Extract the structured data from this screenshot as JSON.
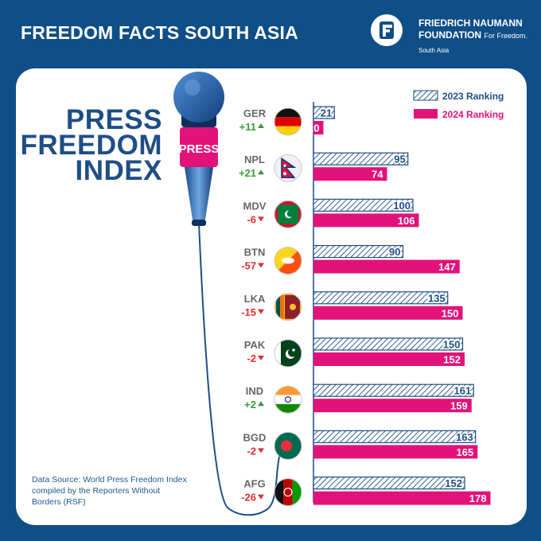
{
  "header": {
    "title": "FREEDOM FACTS SOUTH ASIA"
  },
  "logo": {
    "line1": "FRIEDRICH NAUMANN",
    "line2": "FOUNDATION",
    "tagline": "For Freedom.",
    "sub": "South Asia",
    "icon": "fnf-logo-icon"
  },
  "main_title": [
    "PRESS",
    "FREEDOM",
    "INDEX"
  ],
  "mic_label": "PRESS",
  "source": "Data Source: World Press Freedom Index compiled by the Reporters Without Borders (RSF)",
  "colors": {
    "navy": "#0f4e86",
    "title_blue": "#1f4e86",
    "magenta": "#e2127a",
    "up_green": "#3a9d3a",
    "down_red": "#e03030"
  },
  "chart_data": {
    "type": "bar",
    "categories": [
      "GER",
      "NPL",
      "MDV",
      "BTN",
      "LKA",
      "PAK",
      "IND",
      "BGD",
      "AFG"
    ],
    "changes": [
      "+11",
      "+21",
      "-6",
      "-57",
      "-15",
      "-2",
      "+2",
      "-2",
      "-26"
    ],
    "flags": [
      "germany-flag-icon",
      "nepal-flag-icon",
      "maldives-flag-icon",
      "bhutan-flag-icon",
      "sri-lanka-flag-icon",
      "pakistan-flag-icon",
      "india-flag-icon",
      "bangladesh-flag-icon",
      "afghanistan-flag-icon"
    ],
    "series": [
      {
        "name": "2023 Ranking",
        "values": [
          21,
          95,
          100,
          90,
          135,
          150,
          161,
          163,
          152
        ]
      },
      {
        "name": "2024 Ranking",
        "values": [
          10,
          74,
          106,
          147,
          150,
          152,
          159,
          165,
          178
        ]
      }
    ],
    "legend_position": "top-right"
  }
}
